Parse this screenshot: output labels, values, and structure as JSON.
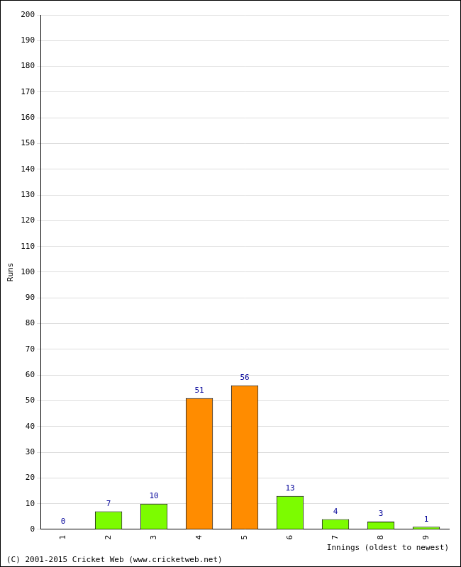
{
  "chart_data": {
    "type": "bar",
    "categories": [
      "1",
      "2",
      "3",
      "4",
      "5",
      "6",
      "7",
      "8",
      "9"
    ],
    "values": [
      0,
      7,
      10,
      51,
      56,
      13,
      4,
      3,
      1
    ],
    "colors": [
      "#7cfc00",
      "#7cfc00",
      "#7cfc00",
      "#ff8c00",
      "#ff8c00",
      "#7cfc00",
      "#7cfc00",
      "#7cfc00",
      "#7cfc00"
    ],
    "x_label": "Innings (oldest to newest)",
    "y_label": "Runs",
    "ylim": [
      0,
      200
    ],
    "yticks": [
      0,
      10,
      20,
      30,
      40,
      50,
      60,
      70,
      80,
      90,
      100,
      110,
      120,
      130,
      140,
      150,
      160,
      170,
      180,
      190,
      200
    ],
    "grid": true,
    "data_labels": true,
    "annotations": [
      "(C) 2001-2015 Cricket Web (www.cricketweb.net)"
    ]
  }
}
